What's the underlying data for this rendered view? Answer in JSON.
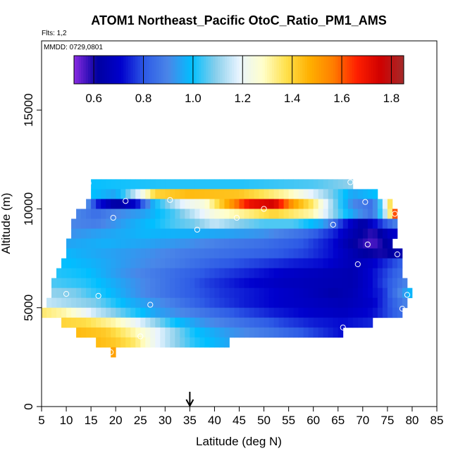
{
  "chart_data": {
    "type": "heatmap",
    "title": "ATOM1 Northeast_Pacific OtoC_Ratio_PM1_AMS",
    "flights_label": "Flts: 1,2",
    "date_label": "MMDD: 0729,0801",
    "xlabel": "Latitude (deg N)",
    "ylabel": "Altitude (m)",
    "xlim": [
      5,
      85
    ],
    "ylim": [
      0,
      18500
    ],
    "x_ticks": [
      5,
      10,
      15,
      20,
      25,
      30,
      35,
      40,
      45,
      50,
      55,
      60,
      65,
      70,
      75,
      80,
      85
    ],
    "y_ticks": [
      0,
      5000,
      10000,
      15000
    ],
    "arrow_latitude": 35,
    "colorbar": {
      "range": [
        0.52,
        1.85
      ],
      "ticks": [
        0.6,
        0.8,
        1.0,
        1.2,
        1.4,
        1.6,
        1.8
      ],
      "tick_labels": [
        "0.6",
        "0.8",
        "1.0",
        "1.2",
        "1.4",
        "1.6",
        "1.8"
      ],
      "colors": [
        "#8a2be2",
        "#0000a0",
        "#0000cd",
        "#2e5be6",
        "#4a86e8",
        "#00bfff",
        "#87ceeb",
        "#e8f4ff",
        "#ffffcc",
        "#ffe14d",
        "#ffb000",
        "#ff7f00",
        "#ff2000",
        "#d00000",
        "#a52a2a"
      ]
    },
    "grid": false,
    "rows": [
      {
        "alt": 11250,
        "lat": [
          15,
          68
        ],
        "v": [
          [
            15,
            1.0
          ],
          [
            30,
            1.02
          ],
          [
            45,
            1.02
          ],
          [
            60,
            1.05
          ],
          [
            68,
            1.1
          ]
        ]
      },
      {
        "alt": 10750,
        "lat": [
          15,
          73
        ],
        "v": [
          [
            15,
            1.0
          ],
          [
            20,
            0.95
          ],
          [
            25,
            1.2
          ],
          [
            28,
            1.4
          ],
          [
            35,
            1.45
          ],
          [
            45,
            1.43
          ],
          [
            55,
            1.3
          ],
          [
            63,
            1.1
          ],
          [
            68,
            0.95
          ],
          [
            73,
            1.0
          ]
        ]
      },
      {
        "alt": 10250,
        "lat": [
          14,
          76
        ],
        "v": [
          [
            14,
            0.95
          ],
          [
            16,
            0.75
          ],
          [
            20,
            0.62
          ],
          [
            24,
            0.7
          ],
          [
            28,
            1.0
          ],
          [
            31,
            1.1
          ],
          [
            34,
            1.2
          ],
          [
            38,
            1.25
          ],
          [
            44,
            1.55
          ],
          [
            47,
            1.7
          ],
          [
            52,
            1.75
          ],
          [
            56,
            1.5
          ],
          [
            60,
            1.35
          ],
          [
            64,
            1.1
          ],
          [
            68,
            0.9
          ],
          [
            72,
            0.85
          ],
          [
            74,
            1.1
          ],
          [
            76,
            1.45
          ]
        ]
      },
      {
        "alt": 9750,
        "lat": [
          12,
          77
        ],
        "v": [
          [
            12,
            0.9
          ],
          [
            16,
            0.85
          ],
          [
            20,
            0.9
          ],
          [
            26,
            0.95
          ],
          [
            32,
            1.05
          ],
          [
            36,
            1.15
          ],
          [
            40,
            1.25
          ],
          [
            44,
            1.3
          ],
          [
            48,
            1.35
          ],
          [
            52,
            1.4
          ],
          [
            56,
            1.35
          ],
          [
            60,
            1.3
          ],
          [
            64,
            1.1
          ],
          [
            68,
            0.95
          ],
          [
            72,
            0.85
          ],
          [
            75,
            1.2
          ],
          [
            77,
            1.75
          ]
        ]
      },
      {
        "alt": 9250,
        "lat": [
          11,
          77
        ],
        "v": [
          [
            11,
            0.9
          ],
          [
            16,
            0.88
          ],
          [
            22,
            0.95
          ],
          [
            28,
            1.0
          ],
          [
            32,
            1.05
          ],
          [
            36,
            1.08
          ],
          [
            40,
            1.15
          ],
          [
            44,
            1.1
          ],
          [
            50,
            1.05
          ],
          [
            56,
            1.05
          ],
          [
            62,
            0.95
          ],
          [
            66,
            0.75
          ],
          [
            70,
            0.62
          ],
          [
            74,
            0.78
          ],
          [
            77,
            0.9
          ]
        ]
      },
      {
        "alt": 8750,
        "lat": [
          11,
          77
        ],
        "v": [
          [
            11,
            0.92
          ],
          [
            18,
            0.95
          ],
          [
            26,
            0.98
          ],
          [
            34,
            0.97
          ],
          [
            42,
            0.95
          ],
          [
            50,
            0.92
          ],
          [
            58,
            0.85
          ],
          [
            64,
            0.75
          ],
          [
            68,
            0.65
          ],
          [
            72,
            0.58
          ],
          [
            76,
            0.7
          ]
        ]
      },
      {
        "alt": 8250,
        "lat": [
          10,
          76
        ],
        "v": [
          [
            10,
            0.95
          ],
          [
            18,
            0.97
          ],
          [
            26,
            0.95
          ],
          [
            34,
            0.92
          ],
          [
            42,
            0.88
          ],
          [
            50,
            0.85
          ],
          [
            58,
            0.8
          ],
          [
            64,
            0.72
          ],
          [
            68,
            0.62
          ],
          [
            72,
            0.56
          ],
          [
            76,
            0.65
          ]
        ]
      },
      {
        "alt": 7750,
        "lat": [
          10,
          78
        ],
        "v": [
          [
            10,
            0.98
          ],
          [
            18,
            0.95
          ],
          [
            26,
            0.92
          ],
          [
            34,
            0.88
          ],
          [
            42,
            0.85
          ],
          [
            50,
            0.82
          ],
          [
            58,
            0.78
          ],
          [
            64,
            0.72
          ],
          [
            70,
            0.62
          ],
          [
            74,
            0.6
          ],
          [
            78,
            0.65
          ]
        ]
      },
      {
        "alt": 7250,
        "lat": [
          9,
          78
        ],
        "v": [
          [
            9,
            1.0
          ],
          [
            16,
            0.97
          ],
          [
            24,
            0.92
          ],
          [
            32,
            0.88
          ],
          [
            40,
            0.82
          ],
          [
            48,
            0.78
          ],
          [
            56,
            0.74
          ],
          [
            62,
            0.72
          ],
          [
            68,
            0.66
          ],
          [
            72,
            0.7
          ],
          [
            78,
            0.82
          ]
        ]
      },
      {
        "alt": 6750,
        "lat": [
          8,
          78
        ],
        "v": [
          [
            8,
            1.02
          ],
          [
            14,
            1.0
          ],
          [
            22,
            0.92
          ],
          [
            30,
            0.86
          ],
          [
            38,
            0.8
          ],
          [
            46,
            0.75
          ],
          [
            54,
            0.7
          ],
          [
            62,
            0.67
          ],
          [
            68,
            0.65
          ],
          [
            72,
            0.72
          ],
          [
            78,
            0.85
          ]
        ]
      },
      {
        "alt": 6250,
        "lat": [
          7,
          79
        ],
        "v": [
          [
            7,
            1.05
          ],
          [
            14,
            1.02
          ],
          [
            22,
            0.94
          ],
          [
            30,
            0.86
          ],
          [
            38,
            0.78
          ],
          [
            46,
            0.72
          ],
          [
            54,
            0.68
          ],
          [
            62,
            0.66
          ],
          [
            68,
            0.65
          ],
          [
            72,
            0.72
          ],
          [
            79,
            0.9
          ]
        ]
      },
      {
        "alt": 5750,
        "lat": [
          7,
          80
        ],
        "v": [
          [
            7,
            1.1
          ],
          [
            12,
            1.08
          ],
          [
            18,
            1.0
          ],
          [
            26,
            0.9
          ],
          [
            34,
            0.82
          ],
          [
            42,
            0.76
          ],
          [
            50,
            0.72
          ],
          [
            58,
            0.68
          ],
          [
            64,
            0.64
          ],
          [
            68,
            0.66
          ],
          [
            74,
            0.75
          ],
          [
            80,
            1.0
          ]
        ]
      },
      {
        "alt": 5250,
        "lat": [
          6,
          79
        ],
        "v": [
          [
            6,
            1.15
          ],
          [
            10,
            1.12
          ],
          [
            16,
            1.08
          ],
          [
            22,
            0.98
          ],
          [
            30,
            0.9
          ],
          [
            38,
            0.8
          ],
          [
            46,
            0.74
          ],
          [
            54,
            0.7
          ],
          [
            60,
            0.68
          ],
          [
            66,
            0.66
          ],
          [
            72,
            0.7
          ],
          [
            79,
            0.9
          ]
        ]
      },
      {
        "alt": 4750,
        "lat": [
          5,
          78
        ],
        "v": [
          [
            5,
            1.35
          ],
          [
            10,
            1.3
          ],
          [
            16,
            1.15
          ],
          [
            22,
            1.05
          ],
          [
            28,
            0.95
          ],
          [
            36,
            0.88
          ],
          [
            44,
            0.8
          ],
          [
            52,
            0.74
          ],
          [
            60,
            0.7
          ],
          [
            66,
            0.68
          ],
          [
            72,
            0.72
          ],
          [
            78,
            0.85
          ]
        ]
      },
      {
        "alt": 4250,
        "lat": [
          9,
          72
        ],
        "v": [
          [
            9,
            1.4
          ],
          [
            14,
            1.38
          ],
          [
            20,
            1.3
          ],
          [
            26,
            1.15
          ],
          [
            32,
            1.0
          ],
          [
            38,
            0.92
          ],
          [
            46,
            0.85
          ],
          [
            54,
            0.78
          ],
          [
            60,
            0.74
          ],
          [
            66,
            0.72
          ],
          [
            72,
            0.75
          ]
        ]
      },
      {
        "alt": 3750,
        "lat": [
          12,
          66
        ],
        "v": [
          [
            12,
            1.45
          ],
          [
            18,
            1.42
          ],
          [
            24,
            1.3
          ],
          [
            30,
            1.15
          ],
          [
            36,
            1.0
          ],
          [
            44,
            0.92
          ],
          [
            52,
            0.86
          ],
          [
            58,
            0.8
          ],
          [
            62,
            0.76
          ],
          [
            66,
            0.72
          ]
        ]
      },
      {
        "alt": 3250,
        "lat": [
          16,
          43
        ],
        "v": [
          [
            16,
            1.45
          ],
          [
            20,
            1.42
          ],
          [
            24,
            1.35
          ],
          [
            28,
            1.2
          ],
          [
            32,
            1.1
          ],
          [
            36,
            1.02
          ],
          [
            40,
            0.98
          ],
          [
            43,
            0.95
          ]
        ]
      },
      {
        "alt": 2750,
        "lat": [
          19,
          20
        ],
        "v": [
          [
            19,
            1.5
          ],
          [
            20,
            1.5
          ]
        ]
      }
    ],
    "sample_points": [
      {
        "lat": 14.5,
        "alt": 11300
      },
      {
        "lat": 67.5,
        "alt": 11350
      },
      {
        "lat": 22,
        "alt": 10400
      },
      {
        "lat": 31,
        "alt": 10450
      },
      {
        "lat": 70.5,
        "alt": 10350
      },
      {
        "lat": 50,
        "alt": 10000
      },
      {
        "lat": 76.5,
        "alt": 9750
      },
      {
        "lat": 19.5,
        "alt": 9550
      },
      {
        "lat": 44.5,
        "alt": 9550
      },
      {
        "lat": 64,
        "alt": 9200
      },
      {
        "lat": 36.5,
        "alt": 8950
      },
      {
        "lat": 71,
        "alt": 8200
      },
      {
        "lat": 77,
        "alt": 7700
      },
      {
        "lat": 69,
        "alt": 7200
      },
      {
        "lat": 10,
        "alt": 5700
      },
      {
        "lat": 16.5,
        "alt": 5600
      },
      {
        "lat": 79,
        "alt": 5650
      },
      {
        "lat": 27,
        "alt": 5150
      },
      {
        "lat": 78,
        "alt": 4950
      },
      {
        "lat": 66,
        "alt": 4000
      },
      {
        "lat": 25,
        "alt": 3550
      },
      {
        "lat": 19,
        "alt": 2750
      }
    ]
  }
}
